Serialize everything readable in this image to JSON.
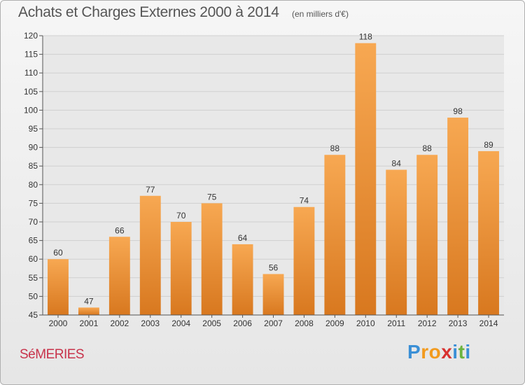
{
  "header": {
    "title": "Achats et Charges Externes 2000 à 2014",
    "subtitle": "(en milliers d'€)"
  },
  "footer": {
    "commune": "SéMERIES",
    "logo": {
      "letters": [
        "P",
        "r",
        "o",
        "x",
        "i",
        "t",
        "i"
      ],
      "text": "Proxiti",
      "colors": [
        "#3a8fd6",
        "#f29a1d",
        "#f29a1d",
        "#d8312f",
        "#3a8fd6",
        "#6bb43f",
        "#3a8fd6"
      ]
    }
  },
  "colors": {
    "bar_light": "#f7a852",
    "bar_dark": "#d8781f",
    "grid": "#cfcfcf",
    "axis": "#555555",
    "plot_bg": "#e8e8e8",
    "commune": "#c8334b"
  },
  "chart_data": {
    "type": "bar",
    "categories": [
      "2000",
      "2001",
      "2002",
      "2003",
      "2004",
      "2005",
      "2006",
      "2007",
      "2008",
      "2009",
      "2010",
      "2011",
      "2012",
      "2013",
      "2014"
    ],
    "values": [
      60,
      47,
      66,
      77,
      70,
      75,
      64,
      56,
      74,
      88,
      118,
      84,
      88,
      98,
      89
    ],
    "ylim": [
      45,
      120
    ],
    "yticks": [
      45,
      50,
      55,
      60,
      65,
      70,
      75,
      80,
      85,
      90,
      95,
      100,
      105,
      110,
      115,
      120
    ],
    "grid": true,
    "data_labels": true
  }
}
